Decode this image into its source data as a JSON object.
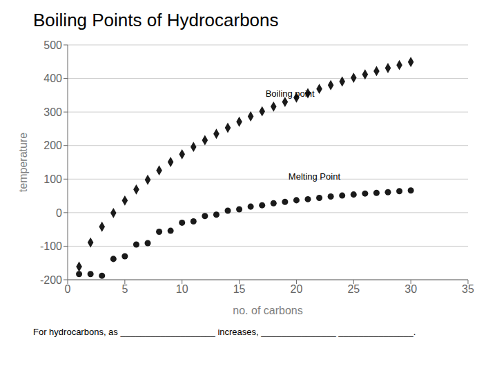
{
  "chart_data": {
    "type": "scatter",
    "title": "Boiling Points of Hydrocarbons",
    "xlabel": "no. of carbons",
    "ylabel": "temperature",
    "xlim": [
      0,
      35
    ],
    "ylim": [
      -200,
      500
    ],
    "xticks": [
      0,
      5,
      10,
      15,
      20,
      25,
      30,
      35
    ],
    "yticks": [
      -200,
      -100,
      0,
      100,
      200,
      300,
      400,
      500
    ],
    "grid": "y",
    "series": [
      {
        "x": [
          1,
          2,
          3,
          4,
          5,
          6,
          7,
          8,
          9,
          10,
          11,
          12,
          13,
          14,
          15,
          16,
          17,
          18,
          19,
          20,
          21,
          22,
          23,
          24,
          25,
          26,
          27,
          28,
          29,
          30
        ],
        "values": [
          -161,
          -89,
          -42,
          -1,
          36,
          69,
          98,
          126,
          151,
          174,
          196,
          216,
          235,
          253,
          271,
          287,
          302,
          316,
          330,
          343,
          356,
          369,
          380,
          391,
          402,
          412,
          422,
          431,
          440,
          449
        ],
        "color": "#1a1a1a",
        "marker": "diamond"
      },
      {
        "x": [
          1,
          2,
          3,
          4,
          5,
          6,
          7,
          8,
          9,
          10,
          11,
          12,
          13,
          14,
          15,
          16,
          17,
          18,
          19,
          20,
          21,
          22,
          23,
          24,
          25,
          26,
          27,
          28,
          29,
          30
        ],
        "values": [
          -183,
          -183,
          -188,
          -138,
          -130,
          -95,
          -91,
          -57,
          -54,
          -30,
          -26,
          -10,
          -6,
          6,
          10,
          18,
          22,
          28,
          32,
          37,
          40,
          44,
          48,
          51,
          54,
          57,
          59,
          61,
          64,
          66
        ],
        "color": "#1a1a1a",
        "marker": "circle"
      }
    ],
    "annotations": [
      {
        "text": "Boiling point",
        "x": 17,
        "y": 355
      },
      {
        "text": "Melting Point",
        "x": 19,
        "y": 108
      },
      {
        "text": "For hydrocarbons, as ___________________ increases, _______________ _______________."
      }
    ]
  }
}
